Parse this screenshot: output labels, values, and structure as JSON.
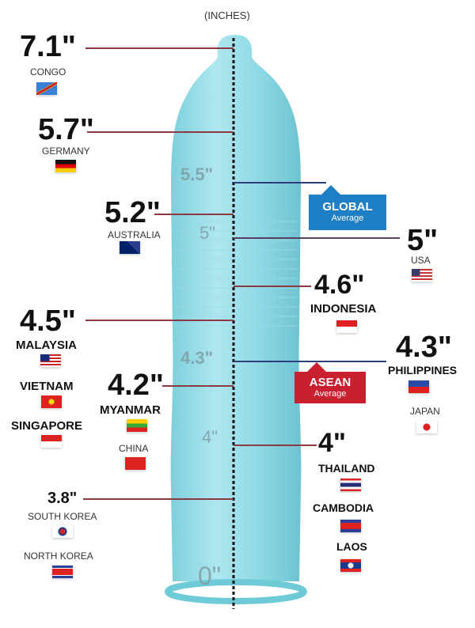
{
  "unit_label": "(INCHES)",
  "axis_ticks": [
    "5.5\"",
    "5\"",
    "4.3\"",
    "4\"",
    "0\""
  ],
  "global_badge": {
    "title": "GLOBAL",
    "subtitle": "Average",
    "color": "#1f7fc4"
  },
  "asean_badge": {
    "title": "ASEAN",
    "subtitle": "Average",
    "color": "#c8202f"
  },
  "entries": [
    {
      "value": "7.1\"",
      "country": "CONGO"
    },
    {
      "value": "5.7\"",
      "country": "GERMANY"
    },
    {
      "value": "5.2\"",
      "country": "AUSTRALIA"
    },
    {
      "value": "5\"",
      "country": "USA"
    },
    {
      "value": "4.6\"",
      "country": "INDONESIA"
    },
    {
      "value": "4.5\"",
      "country": "MALAYSIA"
    },
    {
      "value": "4.3\"",
      "country": "PHILIPPINES"
    },
    {
      "value": "4.2\"",
      "country": "MYANMAR"
    },
    {
      "value": "4\"",
      "country": "THAILAND"
    },
    {
      "value": "3.8\"",
      "country": "SOUTH KOREA"
    }
  ],
  "grouped": {
    "japan": "JAPAN",
    "vietnam": "VIETNAM",
    "singapore": "SINGAPORE",
    "china": "CHINA",
    "cambodia": "CAMBODIA",
    "laos": "LAOS",
    "north_korea": "NORTH KOREA"
  },
  "chart_data": {
    "type": "bar",
    "ylabel": "(INCHES)",
    "categories": [
      "Congo",
      "Germany",
      "Australia",
      "USA",
      "Indonesia",
      "Malaysia",
      "Vietnam",
      "Singapore",
      "Philippines",
      "Japan",
      "Myanmar",
      "China",
      "Thailand",
      "Cambodia",
      "Laos",
      "South Korea",
      "North Korea"
    ],
    "values": [
      7.1,
      5.7,
      5.2,
      5.0,
      4.6,
      4.5,
      4.5,
      4.5,
      4.3,
      4.3,
      4.2,
      4.2,
      4.0,
      4.0,
      4.0,
      3.8,
      3.8
    ],
    "reference_lines": [
      {
        "name": "GLOBAL Average",
        "value": 5.5
      },
      {
        "name": "ASEAN Average",
        "value": 4.3
      }
    ]
  }
}
